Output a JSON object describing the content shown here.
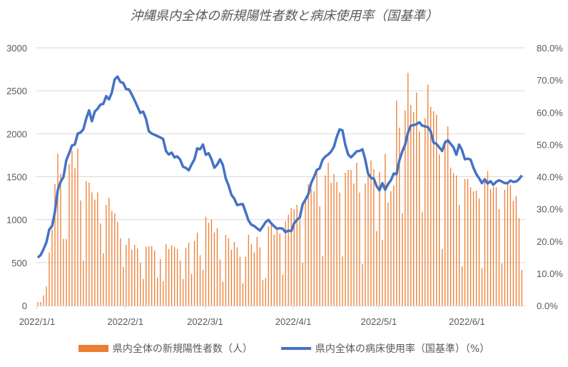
{
  "chart_data": {
    "type": "bar+line",
    "title": "沖縄県内全体の新規陽性者数と病床使用率（国基準）",
    "x_start": "2022/1/1",
    "x_end": "2022/6/20",
    "x_tick_labels": [
      "2022/1/1",
      "2022/2/1",
      "2022/3/1",
      "2022/4/1",
      "2022/5/1",
      "2022/6/1"
    ],
    "x_tick_day_index": [
      0,
      31,
      59,
      90,
      120,
      151
    ],
    "y_left": {
      "ylim": [
        0,
        3000
      ],
      "ticks": [
        "0",
        "500",
        "1000",
        "1500",
        "2000",
        "2500",
        "3000"
      ]
    },
    "y_right": {
      "ylim": [
        0,
        80
      ],
      "ticks": [
        "0.0%",
        "10.0%",
        "20.0%",
        "30.0%",
        "40.0%",
        "50.0%",
        "60.0%",
        "70.0%",
        "80.0%"
      ]
    },
    "grid": true,
    "legend_position": "bottom",
    "series": [
      {
        "name": "県内全体の新規陽性者数（人）",
        "type": "bar",
        "axis": "left",
        "color": "#ED7D31",
        "values": [
          42,
          42,
          119,
          222,
          618,
          886,
          1413,
          1767,
          1532,
          776,
          776,
          1648,
          1800,
          1598,
          1828,
          1224,
          526,
          1449,
          1432,
          1316,
          1233,
          1316,
          956,
          609,
          1172,
          1255,
          1100,
          1072,
          975,
          784,
          451,
          706,
          784,
          651,
          706,
          665,
          499,
          310,
          684,
          693,
          693,
          643,
          324,
          540,
          285,
          715,
          659,
          701,
          679,
          659,
          526,
          310,
          673,
          734,
          368,
          753,
          850,
          587,
          416,
          1033,
          964,
          1000,
          850,
          900,
          535,
          277,
          823,
          784,
          651,
          742,
          679,
          568,
          258,
          568,
          825,
          715,
          618,
          800,
          679,
          296,
          319,
          922,
          936,
          825,
          886,
          836,
          360,
          983,
          1058,
          1136,
          1122,
          1172,
          997,
          499,
          1210,
          1413,
          1357,
          1330,
          1537,
          1155,
          573,
          1515,
          1662,
          1432,
          1532,
          1440,
          1316,
          573,
          1546,
          1579,
          1579,
          1421,
          1662,
          1316,
          485,
          1421,
          1551,
          1690,
          1587,
          867,
          1557,
          767,
          1765,
          1197,
          1330,
          1399,
          2388,
          2072,
          1075,
          2271,
          2709,
          2335,
          2252,
          2479,
          2030,
          1089,
          2180,
          2570,
          2313,
          2263,
          2221,
          1759,
          659,
          1925,
          2086,
          1607,
          1543,
          1515,
          1172,
          457,
          1474,
          1474,
          1377,
          1330,
          1338,
          1247,
          435,
          1440,
          1565,
          1357,
          1385,
          1377,
          1122,
          490,
          1349,
          1413,
          1404,
          1219,
          1274,
          1017,
          416
        ]
      },
      {
        "name": "県内全体の病床使用率（国基準）（%）",
        "type": "line",
        "axis": "right",
        "color": "#4472C4",
        "values": [
          14.9,
          15.7,
          17.5,
          19.6,
          23.6,
          24.7,
          29.0,
          35.8,
          38.4,
          39.9,
          45.1,
          47.3,
          49.7,
          50.0,
          53.4,
          53.7,
          54.7,
          58.0,
          60.6,
          57.2,
          60.2,
          61.1,
          62.4,
          62.6,
          65.0,
          64.0,
          66.1,
          70.2,
          71.1,
          69.4,
          69.1,
          67.2,
          67.1,
          65.5,
          63.7,
          61.7,
          59.8,
          60.2,
          58.0,
          54.1,
          53.4,
          53.0,
          52.6,
          52.2,
          51.7,
          48.0,
          46.9,
          47.5,
          46.0,
          46.3,
          45.3,
          43.1,
          42.7,
          42.0,
          43.8,
          45.4,
          48.8,
          48.5,
          50.0,
          46.8,
          47.3,
          45.4,
          42.8,
          43.8,
          45.4,
          43.6,
          39.5,
          37.3,
          34.4,
          33.2,
          31.2,
          31.4,
          31.5,
          29.0,
          26.4,
          25.1,
          24.7,
          24.0,
          23.3,
          24.5,
          25.9,
          26.6,
          25.5,
          24.6,
          23.9,
          24.0,
          23.9,
          22.8,
          23.3,
          23.1,
          25.5,
          26.6,
          27.3,
          31.4,
          32.9,
          34.6,
          38.0,
          39.9,
          42.1,
          42.6,
          45.2,
          46.3,
          46.9,
          47.8,
          49.3,
          52.4,
          54.7,
          54.4,
          49.9,
          46.9,
          46.0,
          46.9,
          47.9,
          48.0,
          48.5,
          45.3,
          41.0,
          39.7,
          39.4,
          37.1,
          35.8,
          38.0,
          36.0,
          37.7,
          38.9,
          41.0,
          40.8,
          45.1,
          47.8,
          49.9,
          53.6,
          55.9,
          56.0,
          56.3,
          56.9,
          55.9,
          55.6,
          55.4,
          54.1,
          50.6,
          50.2,
          49.1,
          48.0,
          50.6,
          51.3,
          50.2,
          49.1,
          46.8,
          50.0,
          48.2,
          45.4,
          45.6,
          45.3,
          42.8,
          40.8,
          39.5,
          38.0,
          39.2,
          37.9,
          38.6,
          37.5,
          38.4,
          38.9,
          38.5,
          38.0,
          38.0,
          38.8,
          38.4,
          38.5,
          39.2,
          40.4
        ]
      }
    ]
  }
}
